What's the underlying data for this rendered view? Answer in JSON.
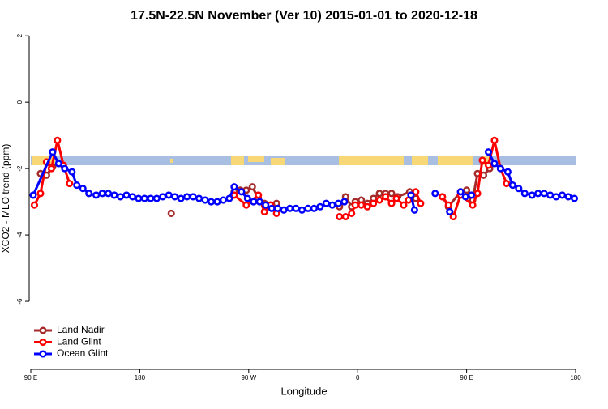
{
  "chart_data": {
    "type": "line",
    "title": "17.5N-22.5N November (Ver 10)   2015-01-01 to 2020-12-18",
    "x_label": "Longitude",
    "y_label": "XCO2 - MLO trend (ppm)",
    "xlim": [
      90,
      540
    ],
    "ylim": [
      -8,
      2.2
    ],
    "xticks": [
      {
        "value": 90,
        "label": "90 E"
      },
      {
        "value": 180,
        "label": "180"
      },
      {
        "value": 270,
        "label": "90 W"
      },
      {
        "value": 360,
        "label": "0"
      },
      {
        "value": 450,
        "label": "90 E"
      },
      {
        "value": 540,
        "label": "180"
      }
    ],
    "yticks": [
      2,
      0,
      -2,
      -4,
      -6
    ],
    "legend": "bottom-left",
    "series": [
      {
        "name": "Land Nadir",
        "color": "#a52a2a",
        "x": [
          98,
          103,
          108,
          null,
          206,
          null,
          258,
          263,
          268,
          273,
          278,
          283,
          288,
          293,
          null,
          345,
          350,
          355,
          358,
          363,
          368,
          373,
          378,
          383,
          388,
          393,
          403,
          408,
          null,
          430,
          435,
          445,
          450,
          455,
          459,
          464,
          469
        ],
        "values": [
          -2.15,
          -2.2,
          -1.95,
          null,
          -3.35,
          null,
          -2.7,
          -2.65,
          -2.65,
          -2.55,
          -2.9,
          -3.05,
          -3.1,
          -3.05,
          null,
          -3.15,
          -2.85,
          -3.15,
          -3.0,
          -2.95,
          -3.05,
          -2.9,
          -2.75,
          -2.75,
          -2.75,
          -2.85,
          -2.7,
          -2.9,
          null,
          -2.85,
          -3.15,
          -2.7,
          -2.65,
          -2.95,
          -2.15,
          -2.2,
          -2.0
        ]
      },
      {
        "name": "Land Glint",
        "color": "#ff0000",
        "x": [
          93,
          98,
          103,
          107,
          112,
          117,
          122,
          null,
          258,
          268,
          278,
          283,
          288,
          293,
          null,
          345,
          350,
          355,
          358,
          363,
          368,
          373,
          378,
          383,
          388,
          392,
          398,
          402,
          408,
          412,
          null,
          430,
          435,
          439,
          445,
          455,
          459,
          463,
          468,
          473,
          478,
          483
        ],
        "values": [
          -3.1,
          -2.75,
          -1.8,
          -2.0,
          -1.15,
          -1.9,
          -2.45,
          null,
          -2.8,
          -3.1,
          -2.8,
          -3.3,
          -3.1,
          -3.35,
          null,
          -3.45,
          -3.45,
          -3.35,
          -3.1,
          -3.1,
          -3.15,
          -3.05,
          -2.95,
          -2.85,
          -3.05,
          -2.9,
          -3.1,
          -2.95,
          -2.7,
          -3.05,
          null,
          -2.85,
          -3.1,
          -3.45,
          -2.8,
          -3.1,
          -2.75,
          -1.75,
          -1.9,
          -1.15,
          -2.0,
          -2.45
        ]
      },
      {
        "name": "Ocean Glint",
        "color": "#0000ff",
        "x": [
          92,
          108,
          113,
          118,
          124,
          128,
          133,
          138,
          144,
          149,
          154,
          159,
          164,
          169,
          174,
          179,
          184,
          189,
          194,
          199,
          204,
          209,
          214,
          219,
          224,
          229,
          234,
          239,
          244,
          249,
          254,
          258,
          264,
          269,
          274,
          279,
          284,
          289,
          294,
          299,
          304,
          309,
          314,
          319,
          324,
          329,
          334,
          339,
          344,
          349,
          null,
          404,
          407,
          null,
          424,
          null,
          436,
          null,
          445,
          449,
          454,
          null,
          468,
          473,
          478,
          484,
          488,
          493,
          498,
          504,
          509,
          514,
          519,
          524,
          529,
          534,
          539
        ],
        "values": [
          -2.8,
          -1.5,
          -1.85,
          -2.0,
          -2.1,
          -2.5,
          -2.6,
          -2.75,
          -2.8,
          -2.75,
          -2.75,
          -2.8,
          -2.85,
          -2.8,
          -2.85,
          -2.9,
          -2.9,
          -2.9,
          -2.9,
          -2.85,
          -2.8,
          -2.85,
          -2.9,
          -2.85,
          -2.85,
          -2.9,
          -2.95,
          -3.0,
          -3.0,
          -2.95,
          -2.9,
          -2.55,
          -2.7,
          -2.9,
          -3.0,
          -3.0,
          -3.1,
          -3.2,
          -3.2,
          -3.25,
          -3.2,
          -3.2,
          -3.25,
          -3.2,
          -3.2,
          -3.15,
          -3.05,
          -3.1,
          -3.05,
          -3.0,
          null,
          -2.8,
          -3.25,
          null,
          -2.75,
          null,
          -3.3,
          null,
          -2.7,
          -2.85,
          -2.8,
          null,
          -1.5,
          -1.85,
          -2.0,
          -2.1,
          -2.5,
          -2.6,
          -2.75,
          -2.8,
          -2.75,
          -2.75,
          -2.8,
          -2.85,
          -2.8,
          -2.85,
          -2.9
        ]
      }
    ]
  }
}
